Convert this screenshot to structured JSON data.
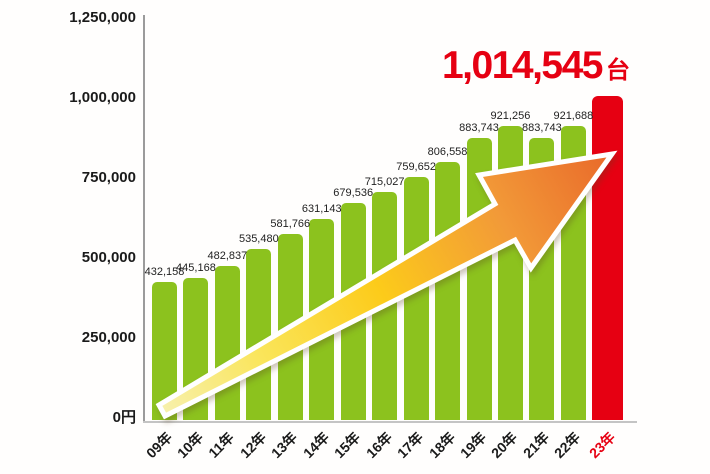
{
  "title": {
    "value": "1,014,545",
    "unit": "台"
  },
  "y_axis": {
    "ticks": [
      "1,250,000",
      "1,000,000",
      "750,000",
      "500,000",
      "250,000",
      "0円"
    ]
  },
  "chart_data": {
    "type": "bar",
    "title": "1,014,545台",
    "categories": [
      "09年",
      "10年",
      "11年",
      "12年",
      "13年",
      "14年",
      "15年",
      "16年",
      "17年",
      "18年",
      "19年",
      "20年",
      "21年",
      "22年",
      "23年"
    ],
    "values": [
      432158,
      445168,
      482837,
      535480,
      581766,
      631143,
      679536,
      715027,
      759652,
      806558,
      883743,
      921256,
      883743,
      921688,
      1014545
    ],
    "value_labels": [
      "432,158",
      "445,168",
      "482,837",
      "535,480",
      "581,766",
      "631,143",
      "679,536",
      "715,027",
      "759,652",
      "806,558",
      "883,743",
      "921,256",
      "883,743",
      "921,688",
      "1,014,545"
    ],
    "ylim": [
      0,
      1250000
    ],
    "y_tick_values": [
      1250000,
      1000000,
      750000,
      500000,
      250000,
      0
    ],
    "highlight_index": 14,
    "grid": false,
    "legend": "none",
    "colors": {
      "bar": "#8CC21E",
      "highlight_bar": "#E60012",
      "value_label": "#1f1f1f",
      "tick_label": "#1a1a1a",
      "highlight_tick_label": "#E60012"
    }
  },
  "arrow": {
    "label": "growth-arrow",
    "outline": "#FFFFFF",
    "gradient": [
      "#F7F0AC",
      "#FAE55A",
      "#FCCB1A",
      "#F29A38",
      "#E9692A"
    ]
  }
}
